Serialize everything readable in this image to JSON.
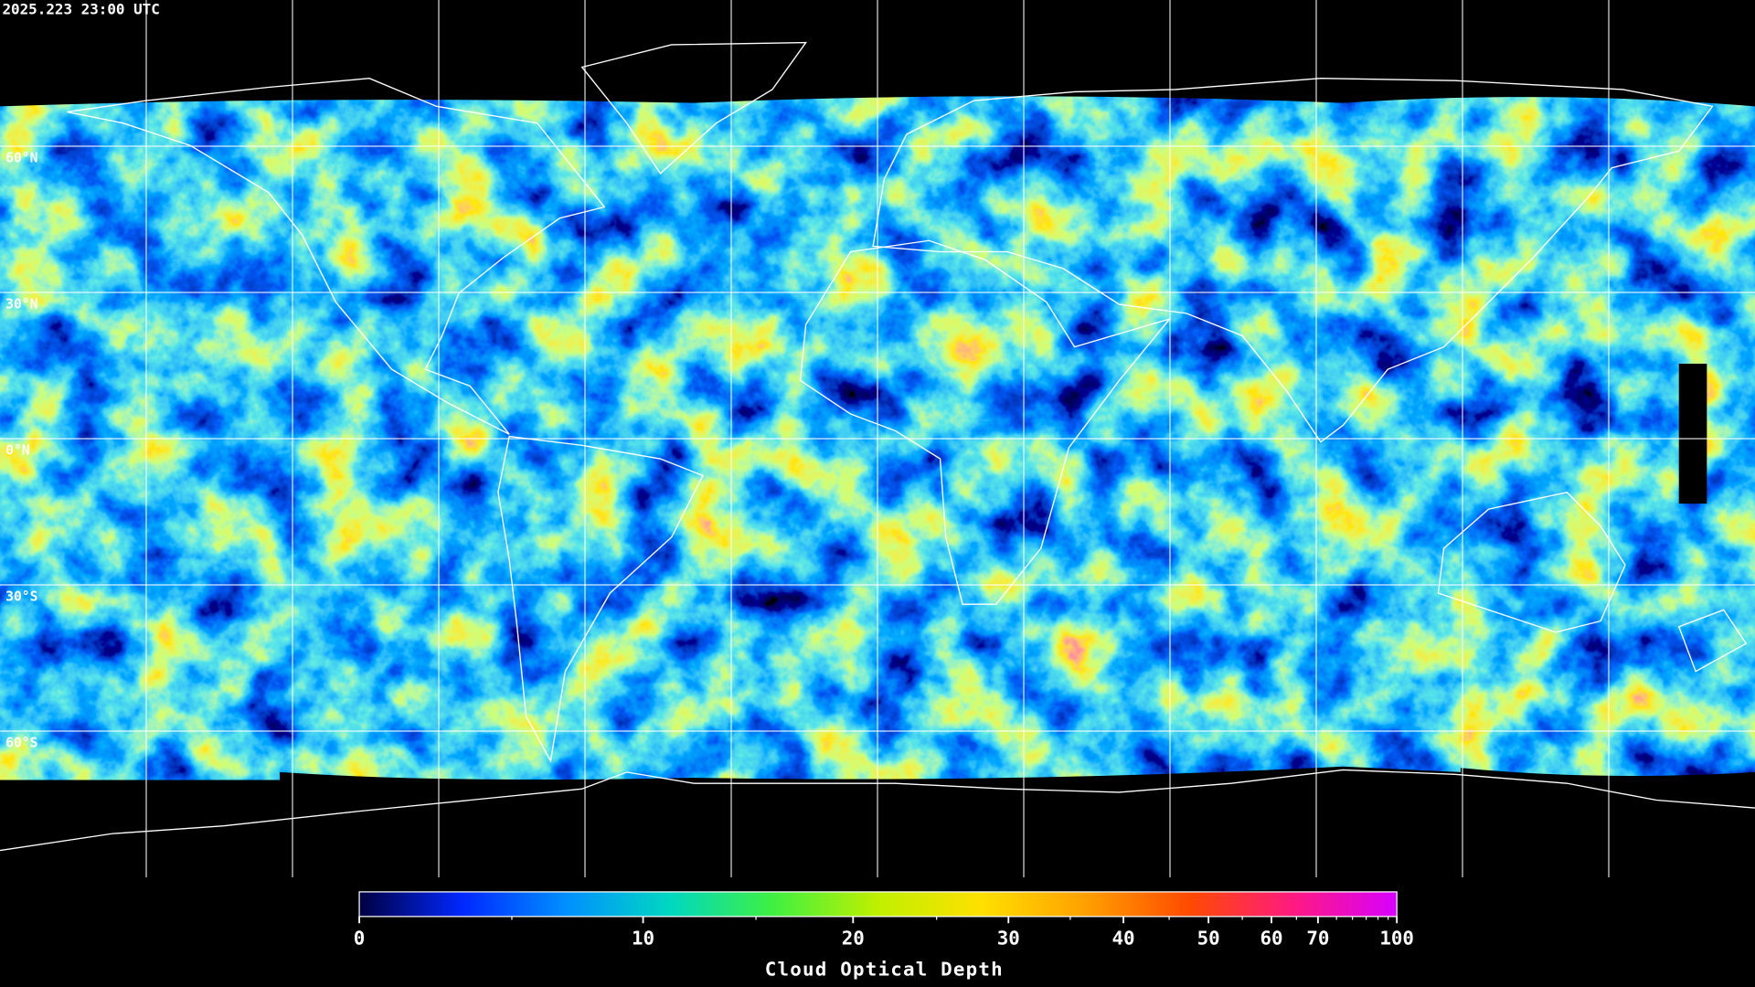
{
  "chart_data": {
    "type": "map",
    "title": "2025.223 23:00 UTC",
    "xlim": [
      -180,
      180
    ],
    "ylim": [
      -90,
      90
    ],
    "grid": true,
    "grid_color": "#ffffff",
    "lon_ticks": [
      -150,
      -120,
      -90,
      -60,
      -30,
      0,
      30,
      60,
      90,
      120,
      150
    ],
    "lat_ticks": [
      {
        "value": 60,
        "label": "60°N"
      },
      {
        "value": 30,
        "label": "30°N"
      },
      {
        "value": 0,
        "label": "0°N"
      },
      {
        "value": -30,
        "label": "30°S"
      },
      {
        "value": -60,
        "label": "60°S"
      }
    ],
    "colorbar": {
      "title": "Cloud Optical Depth",
      "lim": [
        0,
        100
      ],
      "ticks": [
        0,
        10,
        20,
        30,
        40,
        50,
        60,
        70,
        100
      ],
      "minor_ticks": [
        5,
        15,
        25,
        35,
        45,
        55,
        65,
        75,
        80,
        85,
        90,
        95
      ],
      "colors": [
        "#000040",
        "#0028ff",
        "#0090ff",
        "#00d8c0",
        "#40f040",
        "#c0f000",
        "#ffe000",
        "#ffa000",
        "#ff4a00",
        "#ff1a80",
        "#d800ff"
      ]
    }
  }
}
